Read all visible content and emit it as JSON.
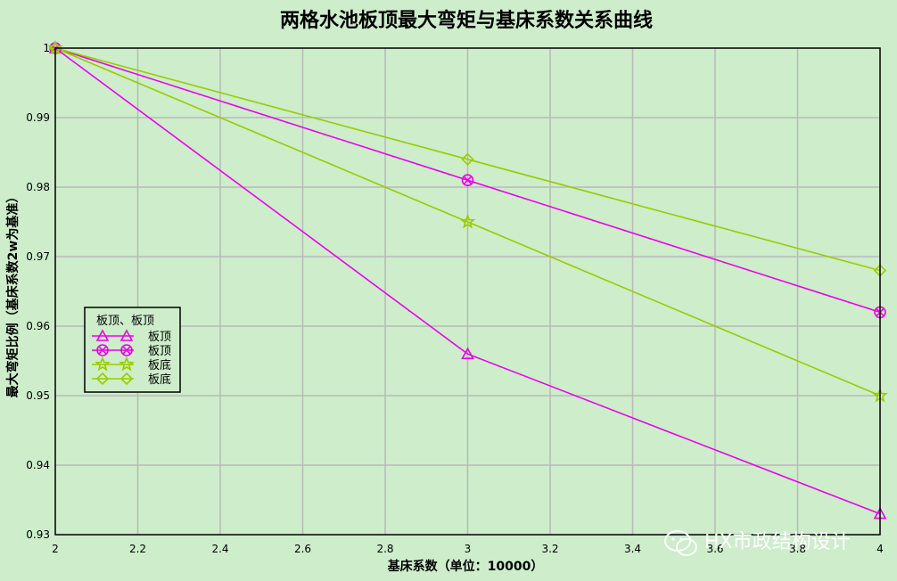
{
  "chart_data": {
    "type": "line",
    "title": "两格水池板顶最大弯矩与基床系数关系曲线",
    "xlabel": "基床系数（单位：10000）",
    "ylabel": "最大弯矩比例（基床系数2w为基准）",
    "xlim": [
      2,
      4
    ],
    "ylim": [
      0.93,
      1.0
    ],
    "x_ticks": [
      "2",
      "2.2",
      "2.4",
      "2.6",
      "2.8",
      "3",
      "3.2",
      "3.4",
      "3.6",
      "3.8",
      "4"
    ],
    "y_ticks": [
      "0.93",
      "0.94",
      "0.95",
      "0.96",
      "0.97",
      "0.98",
      "0.99",
      "1"
    ],
    "grid": true,
    "legend": {
      "title": "板顶、板顶",
      "position": "left-middle"
    },
    "series": [
      {
        "name": "板顶",
        "color": "#ee00ee",
        "marker": "triangle",
        "x": [
          2,
          3,
          4
        ],
        "values": [
          1.0,
          0.956,
          0.933
        ]
      },
      {
        "name": "板顶",
        "color": "#ee00ee",
        "marker": "circle-x",
        "x": [
          2,
          3,
          4
        ],
        "values": [
          1.0,
          0.981,
          0.962
        ]
      },
      {
        "name": "板底",
        "color": "#99cc00",
        "marker": "star",
        "x": [
          2,
          3,
          4
        ],
        "values": [
          1.0,
          0.975,
          0.95
        ]
      },
      {
        "name": "板底",
        "color": "#99cc00",
        "marker": "diamond",
        "x": [
          2,
          3,
          4
        ],
        "values": [
          1.0,
          0.984,
          0.968
        ]
      }
    ]
  },
  "watermark": {
    "text": "HX市政结构设计",
    "icon": "wechat-icon"
  }
}
